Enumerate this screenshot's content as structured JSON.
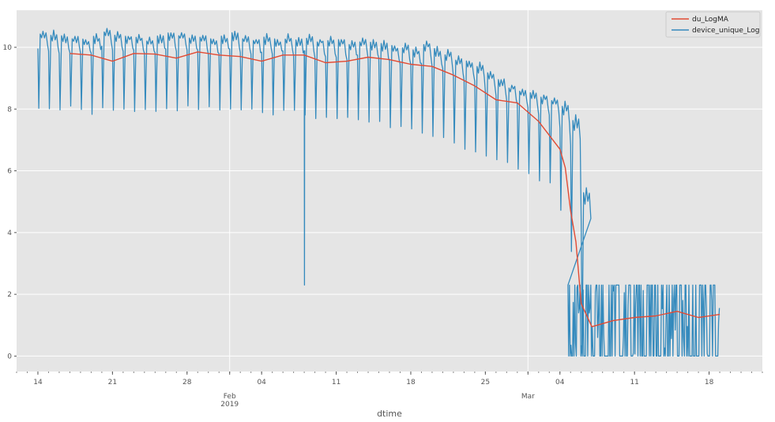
{
  "chart_data": {
    "type": "line",
    "title": "",
    "xlabel": "dtime",
    "ylabel": "",
    "x_range": [
      "2019-01-12",
      "2019-03-23"
    ],
    "ylim": [
      -0.5,
      11.2
    ],
    "grid": true,
    "legend_placement": "top-right",
    "y_ticks": [
      0,
      2,
      4,
      6,
      8,
      10
    ],
    "x_ticks": [
      {
        "date": "2019-01-14",
        "label": "14",
        "sublabel": ""
      },
      {
        "date": "2019-01-21",
        "label": "21",
        "sublabel": ""
      },
      {
        "date": "2019-01-28",
        "label": "28",
        "sublabel": ""
      },
      {
        "date": "2019-02-01",
        "label": "Feb",
        "sublabel": "2019"
      },
      {
        "date": "2019-02-04",
        "label": "04",
        "sublabel": ""
      },
      {
        "date": "2019-02-11",
        "label": "11",
        "sublabel": ""
      },
      {
        "date": "2019-02-18",
        "label": "18",
        "sublabel": ""
      },
      {
        "date": "2019-02-25",
        "label": "25",
        "sublabel": ""
      },
      {
        "date": "2019-03-01",
        "label": "Mar",
        "sublabel": ""
      },
      {
        "date": "2019-03-04",
        "label": "04",
        "sublabel": ""
      },
      {
        "date": "2019-03-11",
        "label": "11",
        "sublabel": ""
      },
      {
        "date": "2019-03-18",
        "label": "18",
        "sublabel": ""
      }
    ],
    "series": [
      {
        "name": "du_LogMA",
        "color": "#e24a33",
        "points": [
          [
            "2019-01-17",
            9.8
          ],
          [
            "2019-01-19",
            9.75
          ],
          [
            "2019-01-21",
            9.55
          ],
          [
            "2019-01-23",
            9.8
          ],
          [
            "2019-01-25",
            9.78
          ],
          [
            "2019-01-27",
            9.65
          ],
          [
            "2019-01-29",
            9.85
          ],
          [
            "2019-01-31",
            9.75
          ],
          [
            "2019-02-02",
            9.7
          ],
          [
            "2019-02-04",
            9.55
          ],
          [
            "2019-02-06",
            9.75
          ],
          [
            "2019-02-08",
            9.75
          ],
          [
            "2019-02-10",
            9.5
          ],
          [
            "2019-02-12",
            9.55
          ],
          [
            "2019-02-14",
            9.68
          ],
          [
            "2019-02-16",
            9.6
          ],
          [
            "2019-02-18",
            9.45
          ],
          [
            "2019-02-20",
            9.38
          ],
          [
            "2019-02-22",
            9.1
          ],
          [
            "2019-02-24",
            8.75
          ],
          [
            "2019-02-26",
            8.3
          ],
          [
            "2019-02-28",
            8.2
          ],
          [
            "2019-03-02",
            7.6
          ],
          [
            "2019-03-04",
            6.7
          ],
          [
            "2019-03-04T12:00",
            6.1
          ],
          [
            "2019-03-05",
            4.7
          ],
          [
            "2019-03-05T12:00",
            3.7
          ],
          [
            "2019-03-06",
            1.7
          ],
          [
            "2019-03-07",
            0.95
          ],
          [
            "2019-03-09",
            1.15
          ],
          [
            "2019-03-11",
            1.25
          ],
          [
            "2019-03-13",
            1.3
          ],
          [
            "2019-03-15",
            1.45
          ],
          [
            "2019-03-17",
            1.25
          ],
          [
            "2019-03-19",
            1.35
          ]
        ]
      },
      {
        "name": "device_unique_Log",
        "color": "#348abd",
        "start": "2019-01-14",
        "daily": [
          [
            8.0,
            10.5
          ],
          [
            7.9,
            10.5
          ],
          [
            7.9,
            10.4
          ],
          [
            8.0,
            10.4
          ],
          [
            7.9,
            10.3
          ],
          [
            7.8,
            10.4
          ],
          [
            8.0,
            10.6
          ],
          [
            7.9,
            10.5
          ],
          [
            8.0,
            10.4
          ],
          [
            7.9,
            10.4
          ],
          [
            8.0,
            10.3
          ],
          [
            7.9,
            10.4
          ],
          [
            8.0,
            10.5
          ],
          [
            7.9,
            10.5
          ],
          [
            8.0,
            10.4
          ],
          [
            7.9,
            10.4
          ],
          [
            8.0,
            10.3
          ],
          [
            7.9,
            10.4
          ],
          [
            7.9,
            10.5
          ],
          [
            7.9,
            10.4
          ],
          [
            7.9,
            10.3
          ],
          [
            7.8,
            10.4
          ],
          [
            7.8,
            10.3
          ],
          [
            7.9,
            10.4
          ],
          [
            7.9,
            10.3
          ],
          [
            7.8,
            10.4
          ],
          [
            7.7,
            10.3
          ],
          [
            7.7,
            10.3
          ],
          [
            7.6,
            10.3
          ],
          [
            7.7,
            10.2
          ],
          [
            7.6,
            10.3
          ],
          [
            7.5,
            10.2
          ],
          [
            7.5,
            10.2
          ],
          [
            7.4,
            10.1
          ],
          [
            7.4,
            10.1
          ],
          [
            7.3,
            10.0
          ],
          [
            7.2,
            10.2
          ],
          [
            7.0,
            10.0
          ],
          [
            7.0,
            9.9
          ],
          [
            6.9,
            9.7
          ],
          [
            6.7,
            9.6
          ],
          [
            6.6,
            9.5
          ],
          [
            6.4,
            9.2
          ],
          [
            6.3,
            9.0
          ],
          [
            6.2,
            8.8
          ],
          [
            6.0,
            8.7
          ],
          [
            5.9,
            8.6
          ],
          [
            5.6,
            8.5
          ],
          [
            5.5,
            8.4
          ],
          [
            4.7,
            8.2
          ],
          [
            3.3,
            7.8
          ],
          [
            0.0,
            5.5
          ]
        ],
        "spike": {
          "date": "2019-02-08",
          "value": 2.3
        },
        "noise_range": [
          0.0,
          2.3
        ],
        "noise_span": [
          "2019-03-04T18:00",
          "2019-03-19"
        ]
      }
    ]
  }
}
